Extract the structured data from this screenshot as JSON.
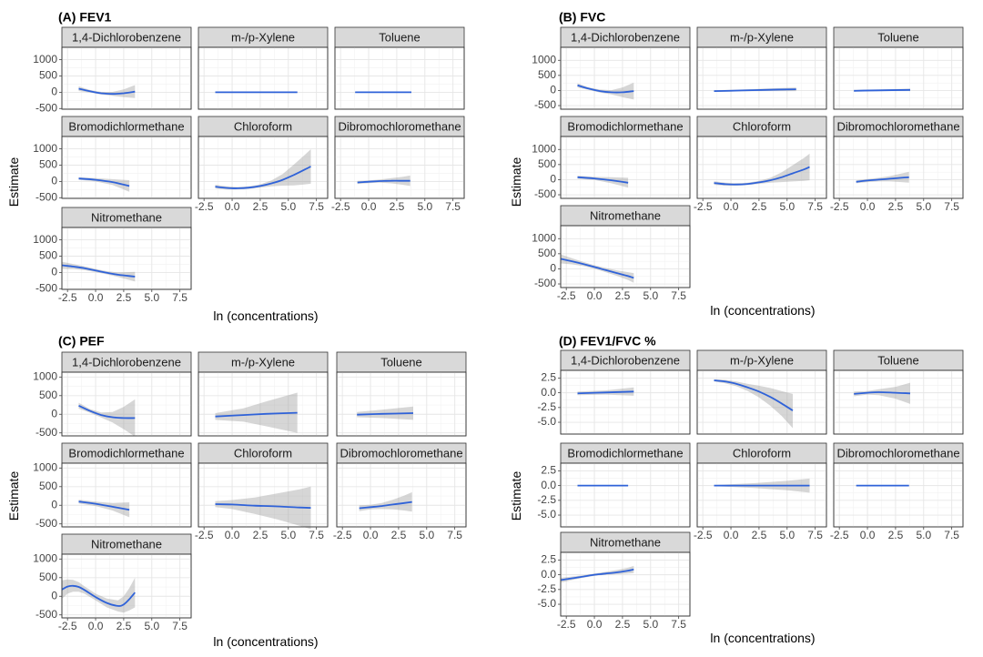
{
  "figure": {
    "xlabel": "ln (concentrations)",
    "ylabel": "Estimate"
  },
  "colors": {
    "line": "#2f62d8",
    "band": "#999999",
    "strip": "#d9d9d9"
  },
  "chart_data": [
    {
      "type": "line",
      "title": "(A) FEV1",
      "xlabel": "ln (concentrations)",
      "ylabel": "Estimate",
      "xlim": [
        -3,
        8.5
      ],
      "ylim": [
        -520,
        1380
      ],
      "xticks": [
        "-2.5",
        "0.0",
        "2.5",
        "5.0",
        "7.5"
      ],
      "yticks": [
        "-500",
        "0",
        "500",
        "1000"
      ],
      "facets": [
        {
          "name": "1,4-Dichlorobenzene",
          "x": [
            -1.5,
            -0.5,
            0.5,
            1.5,
            2.5,
            3.5
          ],
          "y": [
            110,
            30,
            -30,
            -50,
            -30,
            20
          ],
          "lo": [
            40,
            -10,
            -70,
            -110,
            -150,
            -180
          ],
          "hi": [
            180,
            70,
            10,
            10,
            90,
            220
          ]
        },
        {
          "name": "m-/p-Xylene",
          "x": [
            -1.5,
            1,
            3,
            5.8
          ],
          "y": [
            0,
            0,
            0,
            0
          ],
          "lo": [
            -20,
            -20,
            -20,
            -20
          ],
          "hi": [
            20,
            20,
            20,
            20
          ]
        },
        {
          "name": "Toluene",
          "x": [
            -1.2,
            1,
            3.8
          ],
          "y": [
            0,
            0,
            0
          ],
          "lo": [
            -10,
            -10,
            -10
          ],
          "hi": [
            10,
            10,
            10
          ]
        },
        {
          "name": "Bromodichlormethane",
          "x": [
            -1.5,
            0,
            1.5,
            3
          ],
          "y": [
            90,
            50,
            -20,
            -140
          ],
          "lo": [
            50,
            0,
            -110,
            -320
          ],
          "hi": [
            130,
            100,
            70,
            40
          ]
        },
        {
          "name": "Chloroform",
          "x": [
            -1.5,
            -0.5,
            0.5,
            1.5,
            2.5,
            3.5,
            4.5,
            5.5,
            6.5,
            7
          ],
          "y": [
            -160,
            -200,
            -210,
            -190,
            -140,
            -60,
            50,
            200,
            370,
            460
          ],
          "lo": [
            -220,
            -250,
            -250,
            -230,
            -190,
            -150,
            -130,
            -120,
            -90,
            -70
          ],
          "hi": [
            -100,
            -150,
            -170,
            -150,
            -90,
            30,
            230,
            520,
            830,
            990
          ]
        },
        {
          "name": "Dibromochloromethane",
          "x": [
            -1,
            0,
            1,
            2,
            3,
            3.7
          ],
          "y": [
            -30,
            -10,
            10,
            20,
            20,
            20
          ],
          "lo": [
            -80,
            -50,
            -40,
            -60,
            -100,
            -140
          ],
          "hi": [
            20,
            30,
            60,
            100,
            140,
            180
          ]
        },
        {
          "name": "Nitromethane",
          "x": [
            -3,
            -2,
            -1,
            0,
            1,
            2,
            3,
            3.5
          ],
          "y": [
            220,
            180,
            130,
            60,
            -10,
            -70,
            -110,
            -130
          ],
          "lo": [
            110,
            100,
            70,
            10,
            -60,
            -140,
            -230,
            -280
          ],
          "hi": [
            330,
            260,
            190,
            110,
            40,
            0,
            10,
            20
          ]
        }
      ]
    },
    {
      "type": "line",
      "title": "(B) FVC",
      "xlabel": "ln (concentrations)",
      "ylabel": "Estimate",
      "xlim": [
        -3,
        8.5
      ],
      "ylim": [
        -620,
        1430
      ],
      "xticks": [
        "-2.5",
        "0.0",
        "2.5",
        "5.0",
        "7.5"
      ],
      "yticks": [
        "-500",
        "0",
        "500",
        "1000"
      ],
      "facets": [
        {
          "name": "1,4-Dichlorobenzene",
          "x": [
            -1.5,
            -0.5,
            0.5,
            1.5,
            2.5,
            3.5
          ],
          "y": [
            170,
            60,
            -20,
            -60,
            -60,
            -20
          ],
          "lo": [
            100,
            20,
            -70,
            -130,
            -220,
            -300
          ],
          "hi": [
            240,
            100,
            30,
            10,
            100,
            260
          ]
        },
        {
          "name": "m-/p-Xylene",
          "x": [
            -1.5,
            1,
            3,
            5.8
          ],
          "y": [
            -20,
            0,
            20,
            40
          ],
          "lo": [
            -50,
            -30,
            -20,
            -20
          ],
          "hi": [
            10,
            30,
            60,
            100
          ]
        },
        {
          "name": "Toluene",
          "x": [
            -1.2,
            1,
            3.8
          ],
          "y": [
            -10,
            5,
            20
          ],
          "lo": [
            -40,
            -20,
            -20
          ],
          "hi": [
            20,
            30,
            60
          ]
        },
        {
          "name": "Bromodichlormethane",
          "x": [
            -1.5,
            0,
            1.5,
            3
          ],
          "y": [
            80,
            40,
            -20,
            -100
          ],
          "lo": [
            30,
            -10,
            -120,
            -260
          ],
          "hi": [
            130,
            90,
            80,
            60
          ]
        },
        {
          "name": "Chloroform",
          "x": [
            -1.5,
            -0.5,
            0.5,
            1.5,
            2.5,
            3.5,
            4.5,
            5.5,
            6.5,
            7
          ],
          "y": [
            -110,
            -150,
            -160,
            -140,
            -90,
            -20,
            80,
            210,
            340,
            420
          ],
          "lo": [
            -170,
            -200,
            -200,
            -180,
            -140,
            -100,
            -80,
            -60,
            -40,
            -20
          ],
          "hi": [
            -50,
            -100,
            -120,
            -100,
            -40,
            60,
            240,
            480,
            720,
            860
          ]
        },
        {
          "name": "Dibromochloromethane",
          "x": [
            -1,
            0,
            1,
            2,
            3,
            3.7
          ],
          "y": [
            -70,
            -30,
            0,
            30,
            60,
            80
          ],
          "lo": [
            -120,
            -80,
            -60,
            -60,
            -80,
            -100
          ],
          "hi": [
            -20,
            20,
            60,
            120,
            200,
            260
          ]
        },
        {
          "name": "Nitromethane",
          "x": [
            -3,
            -2,
            -1,
            0,
            1,
            2,
            3,
            3.5
          ],
          "y": [
            330,
            250,
            160,
            60,
            -40,
            -140,
            -240,
            -300
          ],
          "lo": [
            180,
            150,
            90,
            0,
            -110,
            -230,
            -370,
            -460
          ],
          "hi": [
            480,
            350,
            230,
            120,
            30,
            -50,
            -110,
            -140
          ]
        }
      ]
    },
    {
      "type": "line",
      "title": "(C) PEF",
      "xlabel": "ln (concentrations)",
      "ylabel": "Estimate",
      "xlim": [
        -3,
        8.5
      ],
      "ylim": [
        -580,
        1130
      ],
      "xticks": [
        "-2.5",
        "0.0",
        "2.5",
        "5.0",
        "7.5"
      ],
      "yticks": [
        "-500",
        "0",
        "500",
        "1000"
      ],
      "facets": [
        {
          "name": "1,4-Dichlorobenzene",
          "x": [
            -1.5,
            -0.5,
            0.5,
            1.5,
            2.5,
            3.5
          ],
          "y": [
            230,
            90,
            -20,
            -80,
            -100,
            -100
          ],
          "lo": [
            150,
            40,
            -90,
            -220,
            -400,
            -600
          ],
          "hi": [
            310,
            140,
            50,
            60,
            200,
            400
          ]
        },
        {
          "name": "m-/p-Xylene",
          "x": [
            -1.5,
            1,
            3,
            5.8
          ],
          "y": [
            -60,
            -20,
            10,
            40
          ],
          "lo": [
            -150,
            -200,
            -320,
            -500
          ],
          "hi": [
            30,
            160,
            340,
            580
          ]
        },
        {
          "name": "Toluene",
          "x": [
            -1.2,
            1,
            3.8
          ],
          "y": [
            -10,
            10,
            30
          ],
          "lo": [
            -80,
            -100,
            -150
          ],
          "hi": [
            60,
            120,
            210
          ]
        },
        {
          "name": "Bromodichlormethane",
          "x": [
            -1.5,
            0,
            1.5,
            3
          ],
          "y": [
            100,
            40,
            -40,
            -120
          ],
          "lo": [
            50,
            -20,
            -140,
            -320
          ],
          "hi": [
            150,
            100,
            60,
            80
          ]
        },
        {
          "name": "Chloroform",
          "x": [
            -1.5,
            0,
            2,
            4,
            6,
            7
          ],
          "y": [
            30,
            20,
            -10,
            -30,
            -60,
            -70
          ],
          "lo": [
            -50,
            -100,
            -230,
            -380,
            -550,
            -640
          ],
          "hi": [
            110,
            140,
            210,
            320,
            430,
            500
          ]
        },
        {
          "name": "Dibromochloromethane",
          "x": [
            -1,
            0,
            1,
            2,
            3,
            3.7
          ],
          "y": [
            -80,
            -50,
            -20,
            20,
            60,
            90
          ],
          "lo": [
            -160,
            -110,
            -100,
            -110,
            -140,
            -170
          ],
          "hi": [
            0,
            10,
            60,
            150,
            260,
            350
          ]
        },
        {
          "name": "Nitromethane",
          "x": [
            -3,
            -2.5,
            -2,
            -1.5,
            -1,
            0,
            1,
            2,
            2.5,
            3,
            3.5
          ],
          "y": [
            180,
            260,
            280,
            250,
            170,
            -20,
            -180,
            -260,
            -220,
            -80,
            100
          ],
          "lo": [
            -70,
            70,
            120,
            120,
            70,
            -110,
            -300,
            -410,
            -440,
            -380,
            -300
          ],
          "hi": [
            430,
            450,
            440,
            380,
            270,
            70,
            -60,
            -110,
            0,
            220,
            500
          ]
        }
      ]
    },
    {
      "type": "line",
      "title": "(D) FEV1/FVC %",
      "xlabel": "ln (concentrations)",
      "ylabel": "Estimate",
      "xlim": [
        -3,
        8.5
      ],
      "ylim": [
        -7,
        3.8
      ],
      "xticks": [
        "-2.5",
        "0.0",
        "2.5",
        "5.0",
        "7.5"
      ],
      "yticks": [
        "-5.0",
        "-2.5",
        "0.0",
        "2.5"
      ],
      "facets": [
        {
          "name": "1,4-Dichlorobenzene",
          "x": [
            -1.5,
            1,
            3.5
          ],
          "y": [
            -0.1,
            0.05,
            0.2
          ],
          "lo": [
            -0.4,
            -0.3,
            -0.5
          ],
          "hi": [
            0.2,
            0.4,
            0.9
          ]
        },
        {
          "name": "m-/p-Xylene",
          "x": [
            -1.5,
            -0.5,
            0.5,
            1.5,
            2.5,
            3.5,
            4.5,
            5.5
          ],
          "y": [
            2.1,
            1.9,
            1.5,
            0.9,
            0.2,
            -0.7,
            -1.8,
            -3.0
          ],
          "lo": [
            1.9,
            1.6,
            1.1,
            0.3,
            -0.8,
            -2.2,
            -3.9,
            -6.0
          ],
          "hi": [
            2.3,
            2.2,
            1.9,
            1.5,
            1.2,
            0.8,
            0.3,
            -0.2
          ]
        },
        {
          "name": "Toluene",
          "x": [
            -1.2,
            0,
            1,
            2.5,
            3.8
          ],
          "y": [
            -0.2,
            0,
            0.1,
            0,
            -0.1
          ],
          "lo": [
            -0.6,
            -0.3,
            -0.4,
            -1.0,
            -1.9
          ],
          "hi": [
            0.2,
            0.3,
            0.6,
            1.0,
            1.7
          ]
        },
        {
          "name": "Bromodichlormethane",
          "x": [
            -1.5,
            3
          ],
          "y": [
            0,
            0
          ],
          "lo": [
            -0.1,
            -0.1
          ],
          "hi": [
            0.1,
            0.1
          ]
        },
        {
          "name": "Chloroform",
          "x": [
            -1.5,
            2,
            5,
            7
          ],
          "y": [
            0,
            0,
            0,
            0
          ],
          "lo": [
            -0.1,
            -0.4,
            -0.8,
            -1.2
          ],
          "hi": [
            0.1,
            0.4,
            0.8,
            1.2
          ]
        },
        {
          "name": "Dibromochloromethane",
          "x": [
            -1,
            3.7
          ],
          "y": [
            0,
            0
          ],
          "lo": [
            -0.1,
            -0.1
          ],
          "hi": [
            0.1,
            0.1
          ]
        },
        {
          "name": "Nitromethane",
          "x": [
            -3,
            -2,
            -1,
            0,
            1,
            2,
            3,
            3.5
          ],
          "y": [
            -0.9,
            -0.6,
            -0.3,
            0,
            0.2,
            0.4,
            0.7,
            0.9
          ],
          "lo": [
            -1.3,
            -0.9,
            -0.5,
            -0.2,
            0,
            0.1,
            0.2,
            0.3
          ],
          "hi": [
            -0.5,
            -0.3,
            -0.1,
            0.2,
            0.5,
            0.8,
            1.2,
            1.5
          ]
        }
      ]
    }
  ]
}
